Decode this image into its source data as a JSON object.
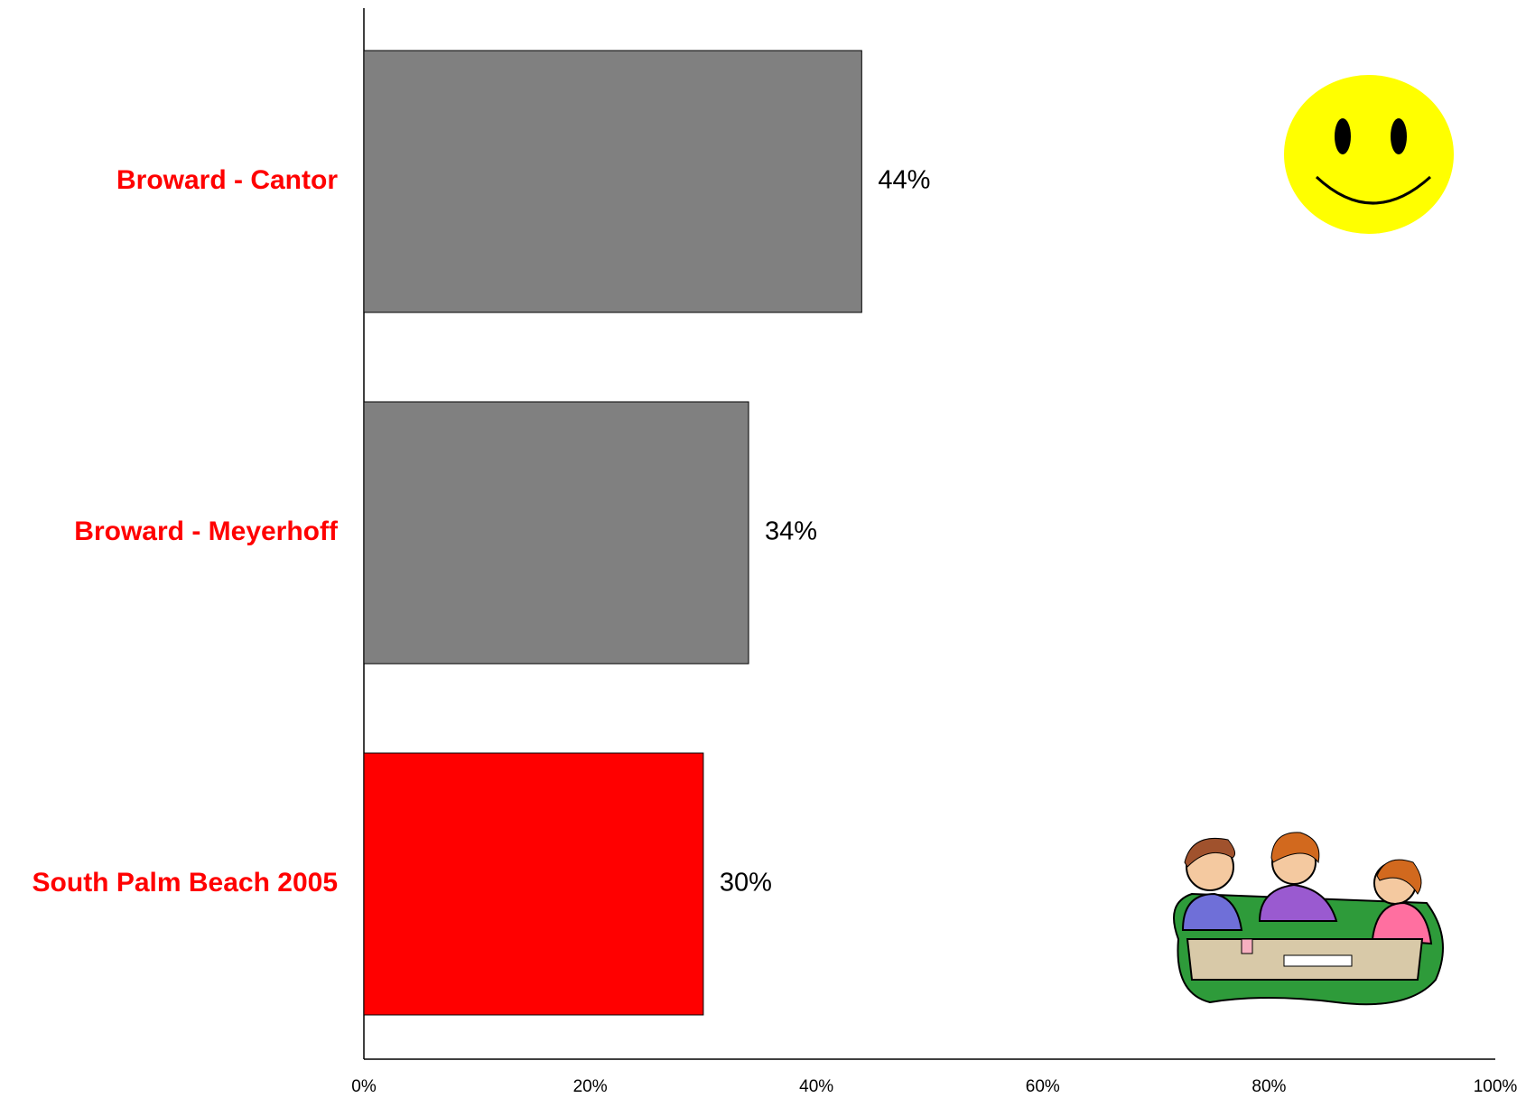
{
  "chart_data": {
    "type": "bar",
    "orientation": "horizontal",
    "categories": [
      "Broward - Cantor",
      "Broward - Meyerhoff",
      "South Palm Beach 2005"
    ],
    "values": [
      44,
      34,
      30
    ],
    "value_labels": [
      "44%",
      "34%",
      "30%"
    ],
    "colors": [
      "#808080",
      "#808080",
      "#ff0000"
    ],
    "category_label_color": "#ff0000",
    "xlim": [
      0,
      100
    ],
    "xticks": [
      {
        "value": 0,
        "label": "0%"
      },
      {
        "value": 20,
        "label": "20%"
      },
      {
        "value": 40,
        "label": "40%"
      },
      {
        "value": 60,
        "label": "60%"
      },
      {
        "value": 80,
        "label": "80%"
      },
      {
        "value": 100,
        "label": "100%"
      }
    ],
    "grid": false
  }
}
